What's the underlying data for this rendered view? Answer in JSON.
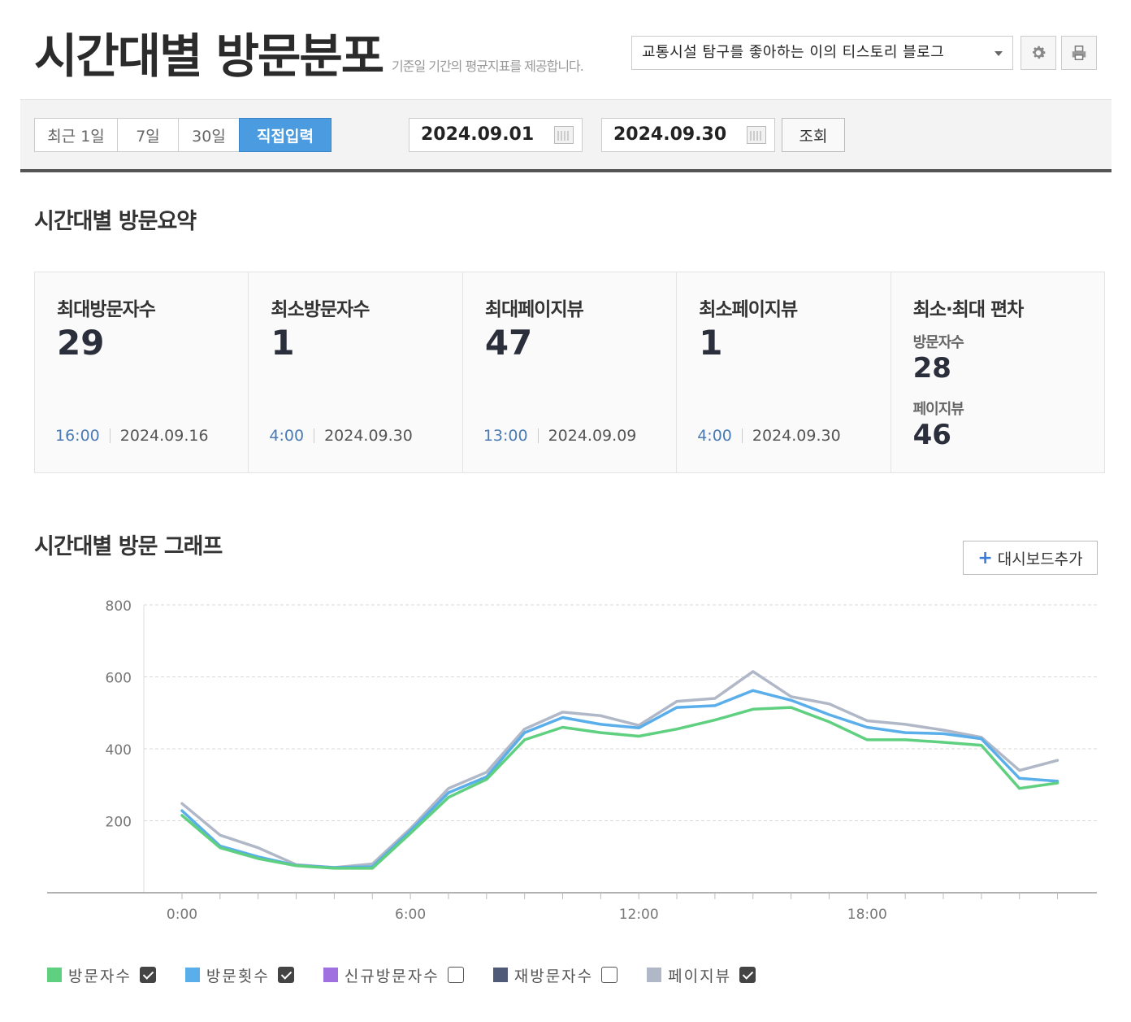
{
  "header": {
    "title": "시간대별 방문분포",
    "description": "기준일 기간의 평균지표를 제공합니다.",
    "blog_select": "교통시설 탐구를 좋아하는 이의 티스토리 블로그",
    "settings_icon": "gear-icon",
    "print_icon": "printer-icon"
  },
  "filter": {
    "ranges": [
      "최근 1일",
      "7일",
      "30일",
      "직접입력"
    ],
    "active_range": "직접입력",
    "start_date": "2024.09.01",
    "end_date": "2024.09.30",
    "separator": "-",
    "query_label": "조회"
  },
  "summary": {
    "title": "시간대별 방문요약",
    "max_visitors": {
      "label": "최대방문자수",
      "value": "29",
      "time": "16:00",
      "date": "2024.09.16"
    },
    "min_visitors": {
      "label": "최소방문자수",
      "value": "1",
      "time": "4:00",
      "date": "2024.09.30"
    },
    "max_pageviews": {
      "label": "최대페이지뷰",
      "value": "47",
      "time": "13:00",
      "date": "2024.09.09"
    },
    "min_pageviews": {
      "label": "최소페이지뷰",
      "value": "1",
      "time": "4:00",
      "date": "2024.09.30"
    },
    "deviation": {
      "label": "최소·최대 편차",
      "visitors_label": "방문자수",
      "visitors_value": "28",
      "pageviews_label": "페이지뷰",
      "pageviews_value": "46"
    }
  },
  "graph": {
    "title": "시간대별 방문 그래프",
    "add_dashboard_label": "대시보드추가",
    "add_dashboard_icon": "plus-icon"
  },
  "legend": [
    {
      "label": "방문자수",
      "color": "#5fcf80",
      "checked": true
    },
    {
      "label": "방문횟수",
      "color": "#5aaeea",
      "checked": true
    },
    {
      "label": "신규방문자수",
      "color": "#a070e0",
      "checked": false
    },
    {
      "label": "재방문자수",
      "color": "#4f5a78",
      "checked": false
    },
    {
      "label": "페이지뷰",
      "color": "#b0b8c8",
      "checked": true
    }
  ],
  "chart_data": {
    "type": "line",
    "x": [
      "0:00",
      "1:00",
      "2:00",
      "3:00",
      "4:00",
      "5:00",
      "6:00",
      "7:00",
      "8:00",
      "9:00",
      "10:00",
      "11:00",
      "12:00",
      "13:00",
      "14:00",
      "15:00",
      "16:00",
      "17:00",
      "18:00",
      "19:00",
      "20:00",
      "21:00",
      "22:00",
      "23:00"
    ],
    "x_tick_labels": [
      "0:00",
      "6:00",
      "12:00",
      "18:00"
    ],
    "ylim": [
      0,
      800
    ],
    "y_ticks": [
      200,
      400,
      600,
      800
    ],
    "grid": true,
    "series": [
      {
        "name": "방문자수",
        "color": "#5fcf80",
        "values": [
          215,
          125,
          95,
          75,
          68,
          68,
          165,
          265,
          315,
          425,
          460,
          445,
          435,
          455,
          480,
          510,
          515,
          475,
          425,
          425,
          418,
          410,
          290,
          305
        ]
      },
      {
        "name": "방문횟수",
        "color": "#5aaeea",
        "values": [
          228,
          130,
          100,
          76,
          70,
          72,
          172,
          278,
          322,
          445,
          487,
          468,
          458,
          515,
          520,
          562,
          535,
          495,
          460,
          445,
          442,
          428,
          318,
          310
        ]
      },
      {
        "name": "페이지뷰",
        "color": "#b0b8c8",
        "values": [
          248,
          160,
          125,
          78,
          70,
          80,
          178,
          290,
          335,
          455,
          502,
          492,
          465,
          532,
          540,
          615,
          545,
          525,
          478,
          468,
          452,
          432,
          340,
          368
        ]
      }
    ]
  }
}
